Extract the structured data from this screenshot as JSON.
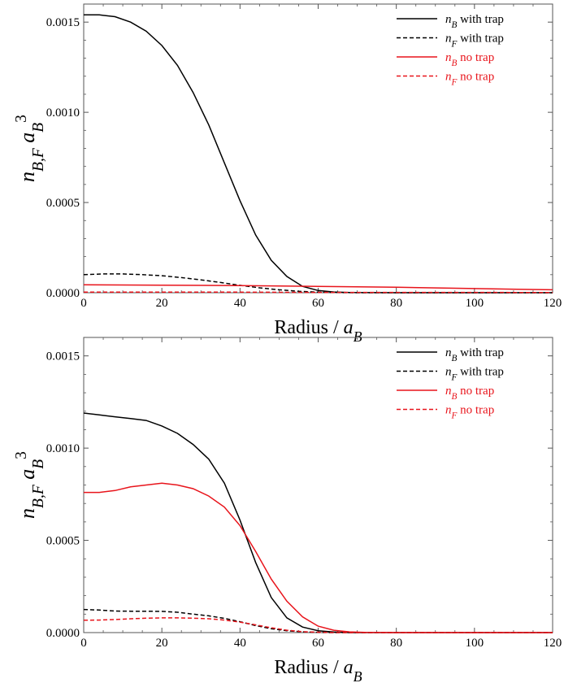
{
  "chart_data": [
    {
      "type": "line",
      "xlabel": "Radius / a_B",
      "ylabel": "n_{B,F} a_B^3",
      "xlim": [
        0,
        120
      ],
      "ylim": [
        0,
        0.0016
      ],
      "xticks": [
        0,
        20,
        40,
        60,
        80,
        100,
        120
      ],
      "yticks": [
        0,
        0.0005,
        0.001,
        0.0015
      ],
      "ytick_labels": [
        "0.0000",
        "0.0005",
        "0.0010",
        "0.0015"
      ],
      "legend_position": "top-right",
      "series": [
        {
          "name": "n_B with trap",
          "color": "#000000",
          "dash": "solid",
          "x": [
            0,
            4,
            8,
            12,
            16,
            20,
            24,
            28,
            32,
            36,
            40,
            44,
            48,
            52,
            56,
            60,
            64,
            68,
            80,
            100,
            120
          ],
          "y": [
            0.00154,
            0.00154,
            0.00153,
            0.0015,
            0.00145,
            0.00137,
            0.00126,
            0.00111,
            0.00093,
            0.00072,
            0.00051,
            0.00032,
            0.00018,
            9e-05,
            3.5e-05,
            1.2e-05,
            4e-06,
            1e-06,
            0,
            0,
            0
          ]
        },
        {
          "name": "n_F with trap",
          "color": "#000000",
          "dash": "dashed",
          "x": [
            0,
            5,
            10,
            15,
            20,
            25,
            30,
            35,
            40,
            45,
            50,
            55,
            60,
            65,
            70,
            80,
            100,
            120
          ],
          "y": [
            0.0001,
            0.000104,
            0.000104,
            0.0001,
            9.4e-05,
            8.4e-05,
            7.1e-05,
            5.7e-05,
            4.1e-05,
            2.7e-05,
            1.6e-05,
            8e-06,
            3e-06,
            1e-06,
            0,
            0,
            0,
            0
          ]
        },
        {
          "name": "n_B no trap",
          "color": "#e8141b",
          "dash": "solid",
          "x": [
            0,
            20,
            40,
            60,
            80,
            100,
            120
          ],
          "y": [
            4.4e-05,
            4.2e-05,
            3.9e-05,
            3.5e-05,
            3e-05,
            2.3e-05,
            1.6e-05
          ]
        },
        {
          "name": "n_F no trap",
          "color": "#e8141b",
          "dash": "dashed",
          "x": [
            0,
            20,
            40,
            60,
            80,
            100,
            120
          ],
          "y": [
            3e-06,
            3e-06,
            3e-06,
            2e-06,
            2e-06,
            2e-06,
            1e-06
          ]
        }
      ]
    },
    {
      "type": "line",
      "xlabel": "Radius / a_B",
      "ylabel": "n_{B,F} a_B^3",
      "xlim": [
        0,
        120
      ],
      "ylim": [
        0,
        0.0016
      ],
      "xticks": [
        0,
        20,
        40,
        60,
        80,
        100,
        120
      ],
      "yticks": [
        0,
        0.0005,
        0.001,
        0.0015
      ],
      "ytick_labels": [
        "0.0000",
        "0.0005",
        "0.0010",
        "0.0015"
      ],
      "legend_position": "top-right",
      "series": [
        {
          "name": "n_B with trap",
          "color": "#000000",
          "dash": "solid",
          "x": [
            0,
            4,
            8,
            12,
            16,
            20,
            24,
            28,
            32,
            36,
            40,
            44,
            48,
            52,
            56,
            60,
            64,
            68,
            80,
            100,
            120
          ],
          "y": [
            0.00119,
            0.00118,
            0.00117,
            0.00116,
            0.00115,
            0.00112,
            0.00108,
            0.00102,
            0.00094,
            0.00081,
            0.00061,
            0.00038,
            0.00019,
            8e-05,
            3e-05,
            1e-05,
            3e-06,
            0,
            0,
            0,
            0
          ]
        },
        {
          "name": "n_F with trap",
          "color": "#000000",
          "dash": "dashed",
          "x": [
            0,
            4,
            8,
            12,
            16,
            20,
            24,
            28,
            32,
            36,
            40,
            44,
            48,
            52,
            56,
            60,
            64,
            70,
            80,
            100,
            120
          ],
          "y": [
            0.000125,
            0.000122,
            0.000117,
            0.000116,
            0.000116,
            0.000115,
            0.00011,
            0.0001,
            9.1e-05,
            7.7e-05,
            5.9e-05,
            3.8e-05,
            2.1e-05,
            1e-05,
            4e-06,
            1e-06,
            0,
            0,
            0,
            0,
            0
          ]
        },
        {
          "name": "n_B no trap",
          "color": "#e8141b",
          "dash": "solid",
          "x": [
            0,
            4,
            8,
            12,
            16,
            20,
            24,
            28,
            32,
            36,
            40,
            44,
            48,
            52,
            56,
            60,
            64,
            68,
            72,
            80,
            100,
            120
          ],
          "y": [
            0.00076,
            0.00076,
            0.00077,
            0.00079,
            0.0008,
            0.00081,
            0.0008,
            0.00078,
            0.00074,
            0.00068,
            0.00058,
            0.00044,
            0.00029,
            0.00017,
            8.5e-05,
            3.5e-05,
            1.3e-05,
            4e-06,
            1e-06,
            0,
            0,
            0
          ]
        },
        {
          "name": "n_F no trap",
          "color": "#e8141b",
          "dash": "dashed",
          "x": [
            0,
            4,
            8,
            12,
            16,
            20,
            24,
            28,
            32,
            36,
            40,
            44,
            48,
            52,
            56,
            60,
            64,
            70,
            80,
            100,
            120
          ],
          "y": [
            6.7e-05,
            6.8e-05,
            7.1e-05,
            7.5e-05,
            7.8e-05,
            8e-05,
            8e-05,
            7.8e-05,
            7.5e-05,
            6.8e-05,
            5.7e-05,
            4.2e-05,
            2.6e-05,
            1.3e-05,
            5e-06,
            2e-06,
            0,
            0,
            0,
            0,
            0
          ]
        }
      ]
    }
  ]
}
